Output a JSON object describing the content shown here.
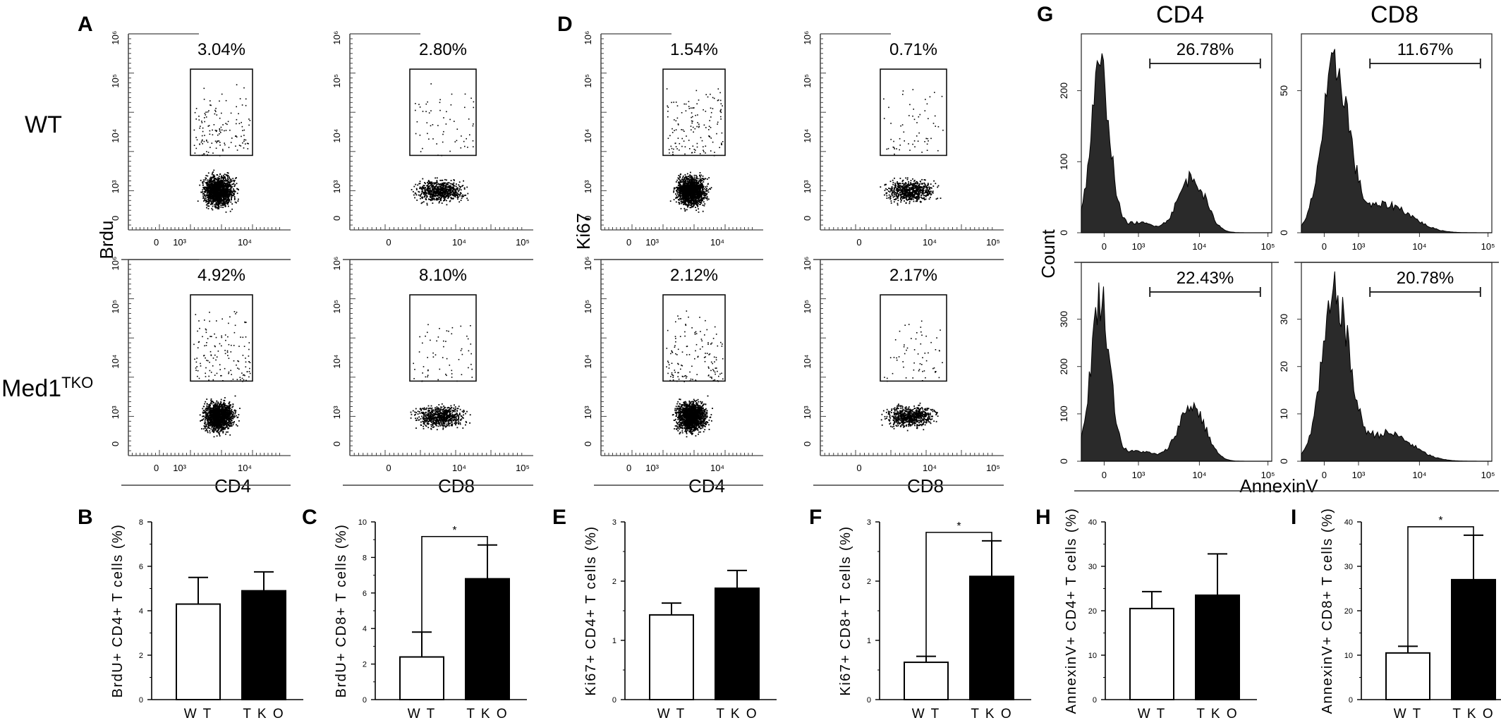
{
  "figure": {
    "panel_letters": [
      "A",
      "B",
      "C",
      "D",
      "E",
      "F",
      "G",
      "H",
      "I"
    ],
    "row_labels": {
      "wt": "WT",
      "tko_base": "Med1",
      "tko_sup": "TKO"
    },
    "flow_tick_labels": {
      "zero": "0",
      "e3": "10³",
      "e4": "10⁴",
      "e5": "10⁵",
      "e6": "10⁶"
    }
  },
  "chart_data": [
    {
      "panel": "A",
      "type": "scatter",
      "ylabel": "Brdu",
      "xlabels": [
        "CD4",
        "CD8"
      ],
      "plots": [
        {
          "row": "WT",
          "marker": "CD4",
          "gate_percent": "3.04%"
        },
        {
          "row": "WT",
          "marker": "CD8",
          "gate_percent": "2.80%"
        },
        {
          "row": "TKO",
          "marker": "CD4",
          "gate_percent": "4.92%"
        },
        {
          "row": "TKO",
          "marker": "CD8",
          "gate_percent": "8.10%"
        }
      ]
    },
    {
      "panel": "D",
      "type": "scatter",
      "ylabel": "Ki67",
      "xlabels": [
        "CD4",
        "CD8"
      ],
      "plots": [
        {
          "row": "WT",
          "marker": "CD4",
          "gate_percent": "1.54%"
        },
        {
          "row": "WT",
          "marker": "CD8",
          "gate_percent": "0.71%"
        },
        {
          "row": "TKO",
          "marker": "CD4",
          "gate_percent": "2.12%"
        },
        {
          "row": "TKO",
          "marker": "CD8",
          "gate_percent": "2.17%"
        }
      ]
    },
    {
      "panel": "G",
      "type": "area",
      "column_titles": [
        "CD4",
        "CD8"
      ],
      "ylabel": "Count",
      "xlabel": "AnnexinV",
      "plots": [
        {
          "row": "WT",
          "marker": "CD4",
          "gate_percent": "26.78%",
          "y_ticks": [
            0,
            100,
            200
          ]
        },
        {
          "row": "WT",
          "marker": "CD8",
          "gate_percent": "11.67%",
          "y_ticks": [
            0,
            50
          ]
        },
        {
          "row": "TKO",
          "marker": "CD4",
          "gate_percent": "22.43%",
          "y_ticks": [
            0,
            100,
            200,
            300
          ]
        },
        {
          "row": "TKO",
          "marker": "CD8",
          "gate_percent": "20.78%",
          "y_ticks": [
            0,
            10,
            20,
            30
          ]
        }
      ]
    },
    {
      "panel": "B",
      "type": "bar",
      "ylabel": "BrdU+ CD4+ T cells (%)",
      "categories": [
        "W T",
        "T K O"
      ],
      "values": [
        4.3,
        4.9
      ],
      "errors": [
        1.2,
        0.85
      ],
      "ylim": [
        0,
        8
      ],
      "yticks": [
        0,
        2,
        4,
        6,
        8
      ],
      "significance": ""
    },
    {
      "panel": "C",
      "type": "bar",
      "ylabel": "BrdU+ CD8+ T cells (%)",
      "categories": [
        "W T",
        "T K O"
      ],
      "values": [
        2.4,
        6.8
      ],
      "errors": [
        1.4,
        1.9
      ],
      "ylim": [
        0,
        10
      ],
      "yticks": [
        0,
        2,
        4,
        6,
        8,
        10
      ],
      "significance": "*"
    },
    {
      "panel": "E",
      "type": "bar",
      "ylabel": "Ki67+ CD4+ T cells (%)",
      "categories": [
        "W T",
        "T K O"
      ],
      "values": [
        1.43,
        1.88
      ],
      "errors": [
        0.2,
        0.3
      ],
      "ylim": [
        0,
        3
      ],
      "yticks": [
        0,
        1,
        2,
        3
      ],
      "significance": ""
    },
    {
      "panel": "F",
      "type": "bar",
      "ylabel": "Ki67+ CD8+ T cells (%)",
      "categories": [
        "W T",
        "T K O"
      ],
      "values": [
        0.63,
        2.08
      ],
      "errors": [
        0.1,
        0.6
      ],
      "ylim": [
        0,
        3
      ],
      "yticks": [
        0,
        1,
        2,
        3
      ],
      "significance": "*"
    },
    {
      "panel": "H",
      "type": "bar",
      "ylabel": "AnnexinV+ CD4+ T cells (%)",
      "categories": [
        "W T",
        "T K O"
      ],
      "values": [
        20.5,
        23.5
      ],
      "errors": [
        3.8,
        9.3
      ],
      "ylim": [
        0,
        40
      ],
      "yticks": [
        0,
        10,
        20,
        30,
        40
      ],
      "significance": ""
    },
    {
      "panel": "I",
      "type": "bar",
      "ylabel": "AnnexinV+ CD8+ T cells (%)",
      "categories": [
        "W T",
        "T K O"
      ],
      "values": [
        10.5,
        27
      ],
      "errors": [
        1.5,
        10
      ],
      "ylim": [
        0,
        40
      ],
      "yticks": [
        0,
        10,
        20,
        30,
        40
      ],
      "significance": "*"
    }
  ]
}
